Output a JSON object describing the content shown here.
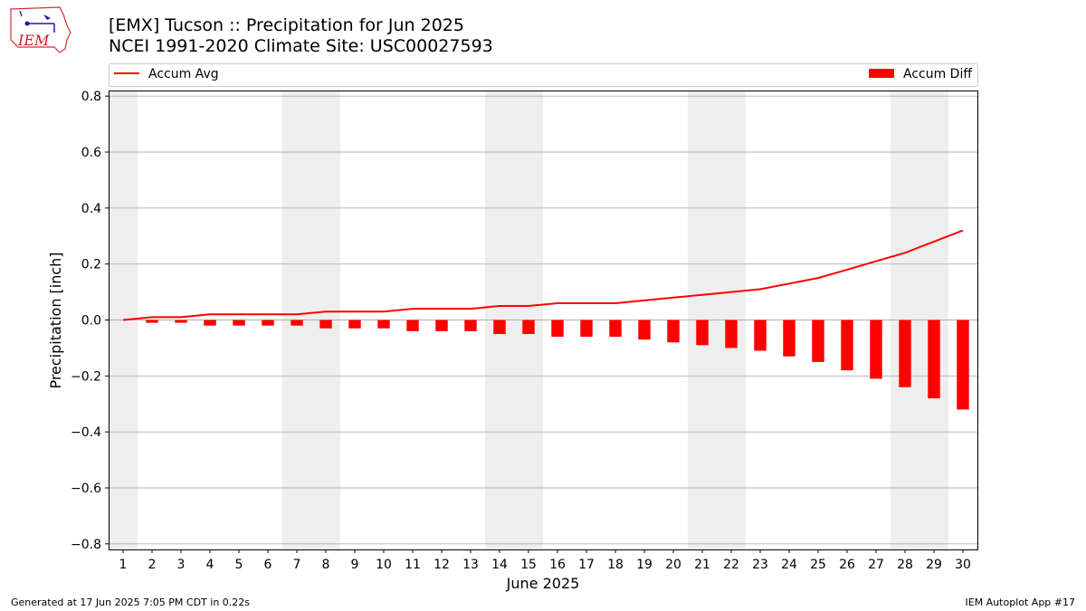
{
  "header": {
    "logo_text": "IEM",
    "title_line1": "[EMX] Tucson :: Precipitation for Jun 2025",
    "title_line2": "NCEI 1991-2020 Climate Site: USC00027593"
  },
  "footer": {
    "generated": "Generated at 17 Jun 2025 7:05 PM CDT in 0.22s",
    "app": "IEM Autoplot App #17"
  },
  "colors": {
    "series": "#ff0000",
    "weekend_band": "#eeeeee",
    "grid": "#b0b0b0"
  },
  "chart_data": {
    "type": "bar",
    "xlabel": "June 2025",
    "ylabel": "Precipitation [inch]",
    "ylim": [
      -0.82,
      0.82
    ],
    "yticks": [
      -0.8,
      -0.6,
      -0.4,
      -0.2,
      0.0,
      0.2,
      0.4,
      0.6,
      0.8
    ],
    "ytick_labels": [
      "−0.8",
      "−0.6",
      "−0.4",
      "−0.2",
      "0.0",
      "0.2",
      "0.4",
      "0.6",
      "0.8"
    ],
    "x": [
      1,
      2,
      3,
      4,
      5,
      6,
      7,
      8,
      9,
      10,
      11,
      12,
      13,
      14,
      15,
      16,
      17,
      18,
      19,
      20,
      21,
      22,
      23,
      24,
      25,
      26,
      27,
      28,
      29,
      30
    ],
    "weekend_days": [
      1,
      7,
      8,
      14,
      15,
      21,
      22,
      28,
      29
    ],
    "grid": "horizontal",
    "legend_position": "top",
    "series": [
      {
        "name": "Accum Avg",
        "type": "line",
        "values": [
          0.0,
          0.01,
          0.01,
          0.02,
          0.02,
          0.02,
          0.02,
          0.03,
          0.03,
          0.03,
          0.04,
          0.04,
          0.04,
          0.05,
          0.05,
          0.06,
          0.06,
          0.06,
          0.07,
          0.08,
          0.09,
          0.1,
          0.11,
          0.13,
          0.15,
          0.18,
          0.21,
          0.24,
          0.28,
          0.32
        ]
      },
      {
        "name": "Accum Diff",
        "type": "bar",
        "values": [
          0.0,
          -0.01,
          -0.01,
          -0.02,
          -0.02,
          -0.02,
          -0.02,
          -0.03,
          -0.03,
          -0.03,
          -0.04,
          -0.04,
          -0.04,
          -0.05,
          -0.05,
          -0.06,
          -0.06,
          -0.06,
          -0.07,
          -0.08,
          -0.09,
          -0.1,
          -0.11,
          -0.13,
          -0.15,
          -0.18,
          -0.21,
          -0.24,
          -0.28,
          -0.32
        ]
      }
    ]
  }
}
